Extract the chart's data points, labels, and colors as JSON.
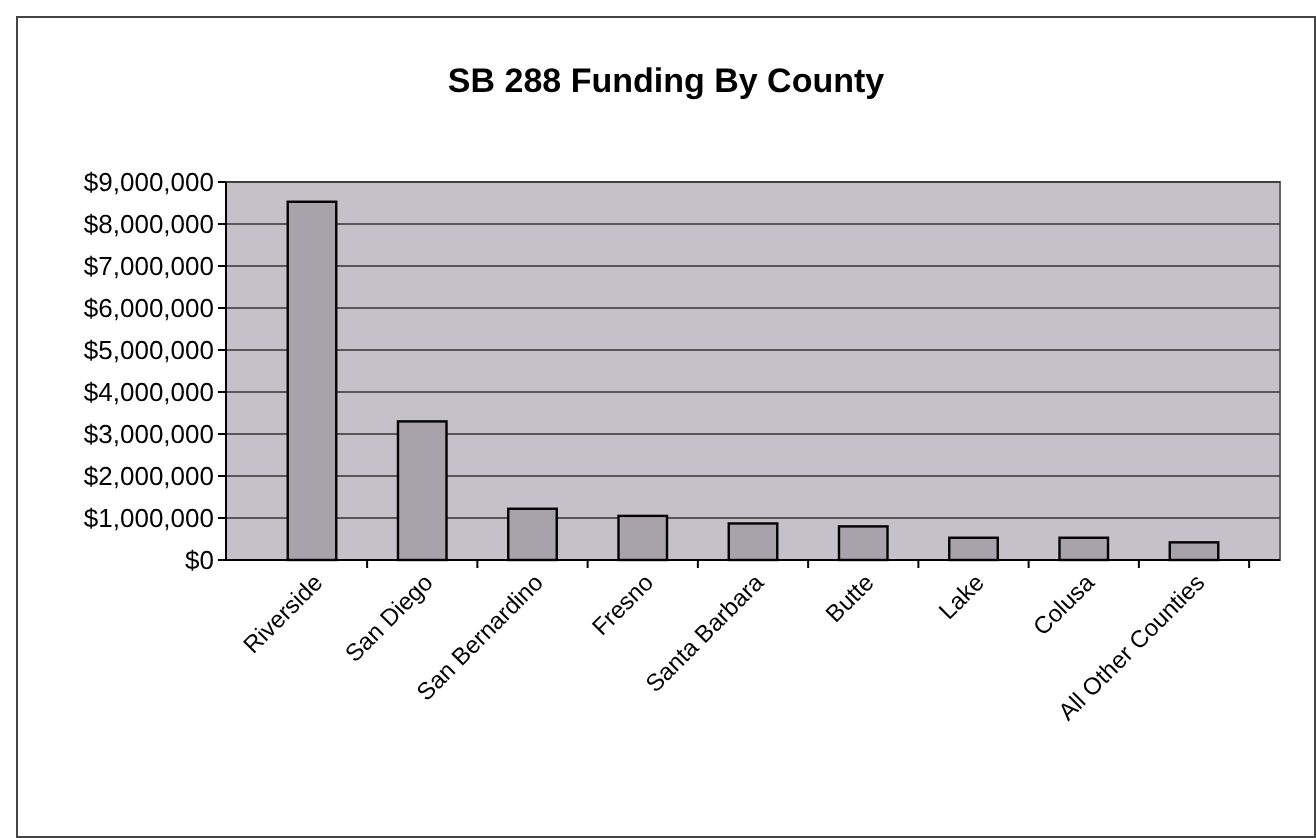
{
  "chart_data": {
    "type": "bar",
    "title": "SB 288 Funding By County",
    "categories": [
      "Riverside",
      "San Diego",
      "San Bernardino",
      "Fresno",
      "Santa Barbara",
      "Butte",
      "Lake",
      "Colusa",
      "All Other Counties"
    ],
    "values": [
      8530000,
      3300000,
      1220000,
      1050000,
      870000,
      800000,
      530000,
      530000,
      420000
    ],
    "color": "#a8a2aa",
    "ylim": [
      0,
      9000000
    ],
    "yticks": [
      {
        "value": 0,
        "label": "$0"
      },
      {
        "value": 1000000,
        "label": "$1,000,000"
      },
      {
        "value": 2000000,
        "label": "$2,000,000"
      },
      {
        "value": 3000000,
        "label": "$3,000,000"
      },
      {
        "value": 4000000,
        "label": "$4,000,000"
      },
      {
        "value": 5000000,
        "label": "$5,000,000"
      },
      {
        "value": 6000000,
        "label": "$6,000,000"
      },
      {
        "value": 7000000,
        "label": "$7,000,000"
      },
      {
        "value": 8000000,
        "label": "$8,000,000"
      },
      {
        "value": 9000000,
        "label": "$9,000,000"
      }
    ],
    "grid": "y"
  }
}
